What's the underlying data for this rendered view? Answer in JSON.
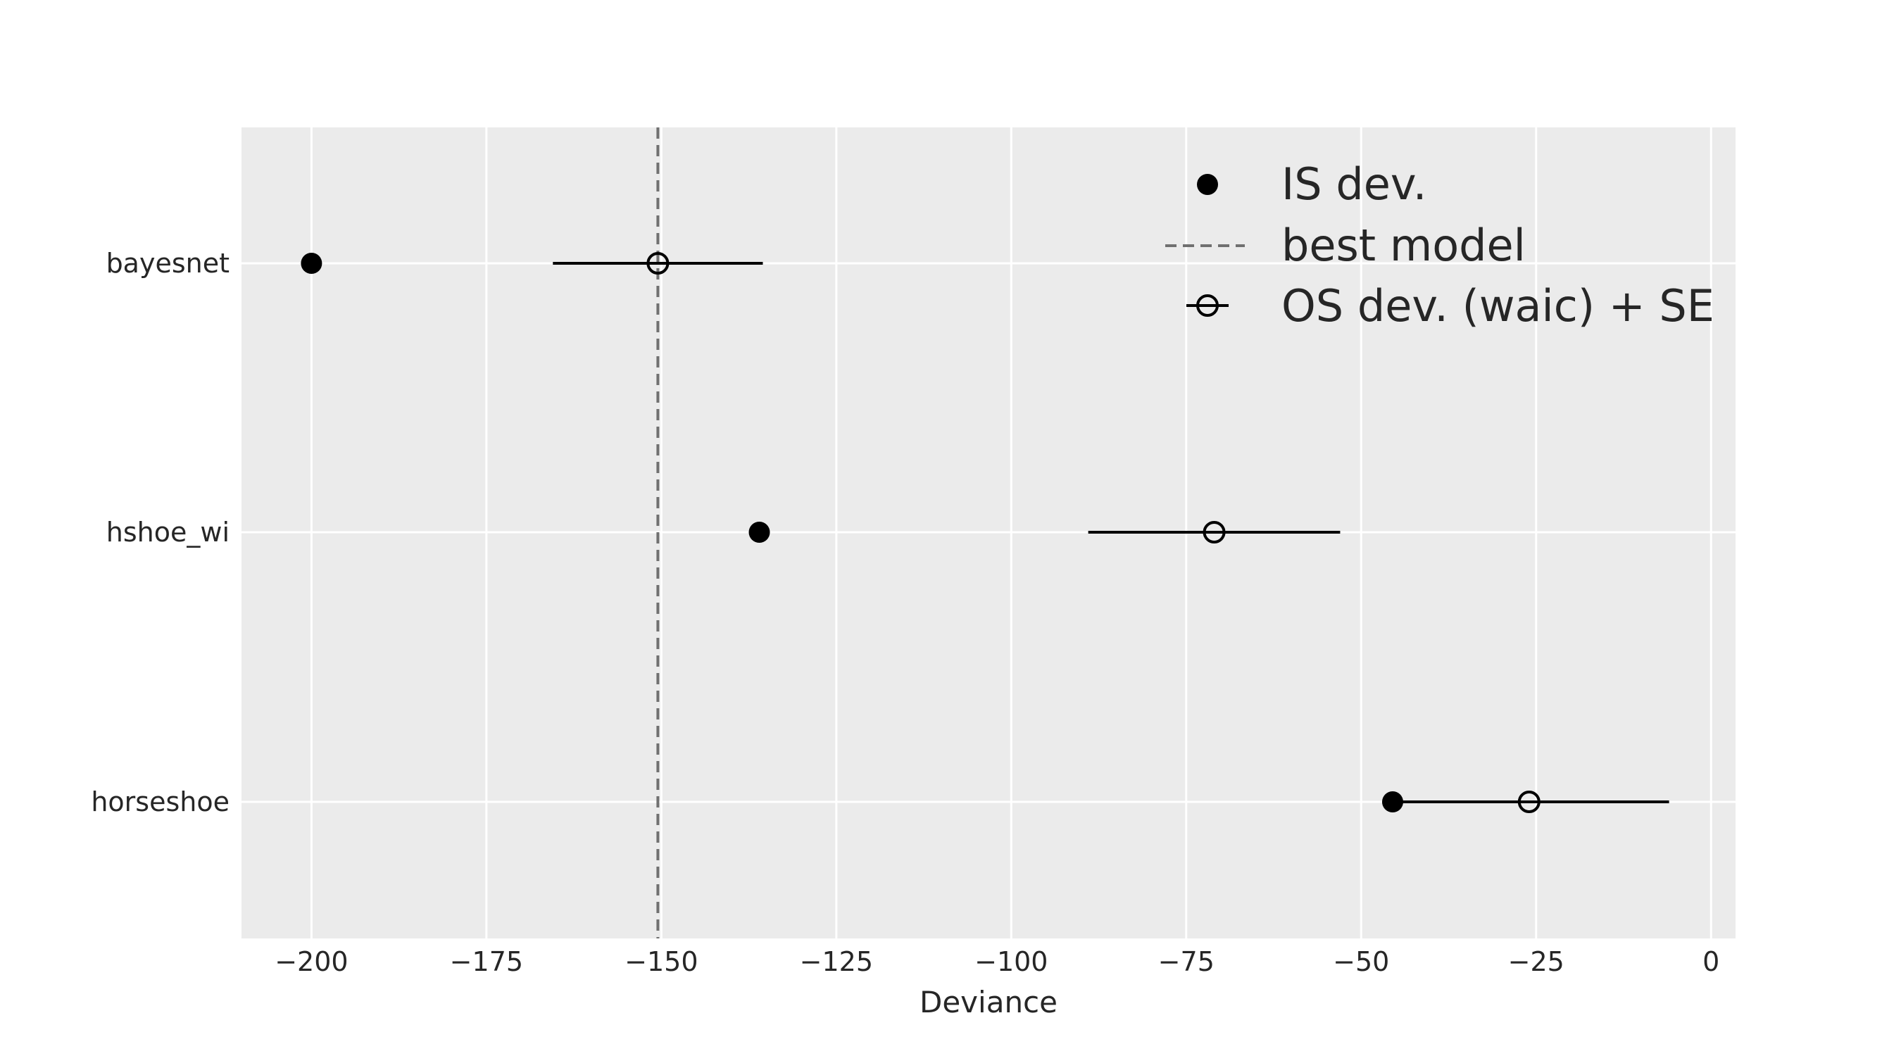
{
  "chart_data": {
    "type": "scatter",
    "title": "",
    "xlabel": "Deviance",
    "ylabel": "",
    "xlim": [
      -210,
      3.5
    ],
    "xticks": [
      -200,
      -175,
      -150,
      -125,
      -100,
      -75,
      -50,
      -25,
      0
    ],
    "xtick_labels": [
      "−200",
      "−175",
      "−150",
      "−125",
      "−100",
      "−75",
      "−50",
      "−25",
      "0"
    ],
    "categories": [
      "bayesnet",
      "hshoe_wi",
      "horseshoe"
    ],
    "in_sample_deviance": [
      -200,
      -136,
      -45.5
    ],
    "out_of_sample_deviance": [
      -150.5,
      -71,
      -26
    ],
    "standard_error": [
      15,
      18,
      20
    ],
    "best_model_line": -150.5,
    "grid": true,
    "legend": {
      "placement": "top-right",
      "entries": [
        "IS dev.",
        "best model",
        "OS dev. (waic) + SE"
      ]
    },
    "colors": {
      "background": "#ebebeb",
      "grid": "#ffffff",
      "marker": "#000000",
      "best_line": "#707070",
      "text": "#262626"
    }
  }
}
